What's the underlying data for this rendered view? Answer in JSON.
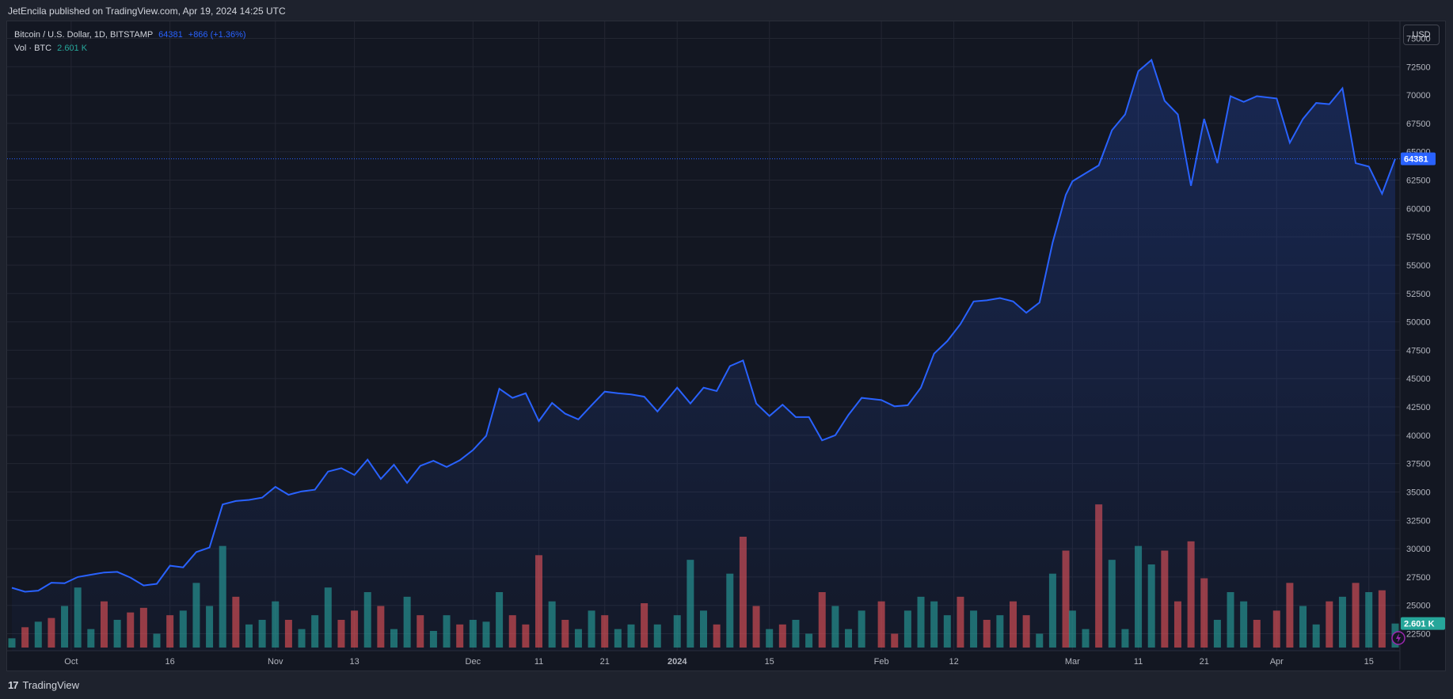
{
  "header": {
    "publisher_text": "JetEncila published on TradingView.com, Apr 19, 2024 14:25 UTC"
  },
  "legend": {
    "symbol": "Bitcoin / U.S. Dollar, 1D, BITSTAMP",
    "last_price": "64381",
    "change": "+866 (+1.36%)",
    "volume_label": "Vol · BTC",
    "volume_value": "2.601 K"
  },
  "currency_button": "USD",
  "price_badge": "64381",
  "volume_badge": "2.601 K",
  "footer": {
    "brand": "TradingView",
    "logo_text": "17"
  },
  "colors": {
    "line": "#2962ff",
    "up_volume": "#26a69a",
    "down_volume": "#ef5350",
    "background": "#131722",
    "grid": "#232632",
    "axis_text": "#b2b5be"
  },
  "chart_data": {
    "type": "area",
    "title": "Bitcoin / U.S. Dollar, 1D, BITSTAMP",
    "x_range": [
      "2023-09-22",
      "2024-04-19"
    ],
    "x_tick_labels": [
      {
        "date": "2023-10-01",
        "label": "Oct"
      },
      {
        "date": "2023-10-16",
        "label": "16"
      },
      {
        "date": "2023-11-01",
        "label": "Nov"
      },
      {
        "date": "2023-11-13",
        "label": "13"
      },
      {
        "date": "2023-12-01",
        "label": "Dec"
      },
      {
        "date": "2023-12-11",
        "label": "11"
      },
      {
        "date": "2023-12-21",
        "label": "21"
      },
      {
        "date": "2024-01-01",
        "label": "2024"
      },
      {
        "date": "2024-01-15",
        "label": "15"
      },
      {
        "date": "2024-02-01",
        "label": "Feb"
      },
      {
        "date": "2024-02-12",
        "label": "12"
      },
      {
        "date": "2024-03-01",
        "label": "Mar"
      },
      {
        "date": "2024-03-11",
        "label": "11"
      },
      {
        "date": "2024-03-21",
        "label": "21"
      },
      {
        "date": "2024-04-01",
        "label": "Apr"
      },
      {
        "date": "2024-04-15",
        "label": "15"
      }
    ],
    "y_tick_labels": [
      "22500",
      "25000",
      "27500",
      "30000",
      "32500",
      "35000",
      "37500",
      "40000",
      "42500",
      "45000",
      "47500",
      "50000",
      "52500",
      "55000",
      "57500",
      "60000",
      "62500",
      "65000",
      "67500",
      "70000",
      "72500",
      "75000"
    ],
    "ylim": [
      21000,
      76500
    ],
    "grid": true,
    "price_series": {
      "name": "Bitcoin / U.S. Dollar",
      "points": [
        [
          "2023-09-22",
          26550
        ],
        [
          "2023-09-24",
          26200
        ],
        [
          "2023-09-26",
          26300
        ],
        [
          "2023-09-28",
          27000
        ],
        [
          "2023-09-30",
          26950
        ],
        [
          "2023-10-02",
          27500
        ],
        [
          "2023-10-04",
          27700
        ],
        [
          "2023-10-06",
          27900
        ],
        [
          "2023-10-08",
          27950
        ],
        [
          "2023-10-10",
          27450
        ],
        [
          "2023-10-12",
          26750
        ],
        [
          "2023-10-14",
          26900
        ],
        [
          "2023-10-16",
          28500
        ],
        [
          "2023-10-18",
          28350
        ],
        [
          "2023-10-20",
          29700
        ],
        [
          "2023-10-22",
          30100
        ],
        [
          "2023-10-24",
          33900
        ],
        [
          "2023-10-26",
          34200
        ],
        [
          "2023-10-28",
          34300
        ],
        [
          "2023-10-30",
          34500
        ],
        [
          "2023-11-01",
          35450
        ],
        [
          "2023-11-03",
          34750
        ],
        [
          "2023-11-05",
          35050
        ],
        [
          "2023-11-07",
          35200
        ],
        [
          "2023-11-09",
          36800
        ],
        [
          "2023-11-11",
          37100
        ],
        [
          "2023-11-13",
          36500
        ],
        [
          "2023-11-15",
          37850
        ],
        [
          "2023-11-17",
          36150
        ],
        [
          "2023-11-19",
          37400
        ],
        [
          "2023-11-21",
          35800
        ],
        [
          "2023-11-23",
          37300
        ],
        [
          "2023-11-25",
          37750
        ],
        [
          "2023-11-27",
          37200
        ],
        [
          "2023-11-29",
          37800
        ],
        [
          "2023-12-01",
          38700
        ],
        [
          "2023-12-03",
          39950
        ],
        [
          "2023-12-05",
          44100
        ],
        [
          "2023-12-07",
          43300
        ],
        [
          "2023-12-09",
          43700
        ],
        [
          "2023-12-11",
          41250
        ],
        [
          "2023-12-13",
          42850
        ],
        [
          "2023-12-15",
          41900
        ],
        [
          "2023-12-17",
          41400
        ],
        [
          "2023-12-19",
          42650
        ],
        [
          "2023-12-21",
          43850
        ],
        [
          "2023-12-23",
          43700
        ],
        [
          "2023-12-25",
          43600
        ],
        [
          "2023-12-27",
          43400
        ],
        [
          "2023-12-29",
          42100
        ],
        [
          "2024-01-01",
          44200
        ],
        [
          "2024-01-03",
          42800
        ],
        [
          "2024-01-05",
          44200
        ],
        [
          "2024-01-07",
          43900
        ],
        [
          "2024-01-09",
          46100
        ],
        [
          "2024-01-11",
          46600
        ],
        [
          "2024-01-13",
          42800
        ],
        [
          "2024-01-15",
          41700
        ],
        [
          "2024-01-17",
          42700
        ],
        [
          "2024-01-19",
          41600
        ],
        [
          "2024-01-21",
          41600
        ],
        [
          "2024-01-23",
          39550
        ],
        [
          "2024-01-25",
          40000
        ],
        [
          "2024-01-27",
          41800
        ],
        [
          "2024-01-29",
          43300
        ],
        [
          "2024-02-01",
          43100
        ],
        [
          "2024-02-03",
          42550
        ],
        [
          "2024-02-05",
          42650
        ],
        [
          "2024-02-07",
          44200
        ],
        [
          "2024-02-09",
          47200
        ],
        [
          "2024-02-11",
          48300
        ],
        [
          "2024-02-13",
          49800
        ],
        [
          "2024-02-15",
          51800
        ],
        [
          "2024-02-17",
          51900
        ],
        [
          "2024-02-19",
          52100
        ],
        [
          "2024-02-21",
          51800
        ],
        [
          "2024-02-23",
          50800
        ],
        [
          "2024-02-25",
          51700
        ],
        [
          "2024-02-27",
          57000
        ],
        [
          "2024-02-29",
          61200
        ],
        [
          "2024-03-01",
          62400
        ],
        [
          "2024-03-03",
          63100
        ],
        [
          "2024-03-05",
          63800
        ],
        [
          "2024-03-07",
          66900
        ],
        [
          "2024-03-09",
          68300
        ],
        [
          "2024-03-11",
          72100
        ],
        [
          "2024-03-13",
          73100
        ],
        [
          "2024-03-15",
          69500
        ],
        [
          "2024-03-17",
          68300
        ],
        [
          "2024-03-19",
          62000
        ],
        [
          "2024-03-21",
          67900
        ],
        [
          "2024-03-23",
          64000
        ],
        [
          "2024-03-25",
          69900
        ],
        [
          "2024-03-27",
          69400
        ],
        [
          "2024-03-29",
          69900
        ],
        [
          "2024-04-01",
          69700
        ],
        [
          "2024-04-03",
          65800
        ],
        [
          "2024-04-05",
          67900
        ],
        [
          "2024-04-07",
          69300
        ],
        [
          "2024-04-09",
          69200
        ],
        [
          "2024-04-11",
          70600
        ],
        [
          "2024-04-13",
          64000
        ],
        [
          "2024-04-15",
          63700
        ],
        [
          "2024-04-17",
          61300
        ],
        [
          "2024-04-19",
          64381
        ]
      ]
    },
    "volume_series": {
      "name": "Vol · BTC",
      "unit": "thousand BTC",
      "ylim": [
        0,
        18
      ],
      "bars": [
        {
          "date": "2023-09-22",
          "value": 1.0,
          "dir": "up"
        },
        {
          "date": "2023-09-24",
          "value": 2.2,
          "dir": "down"
        },
        {
          "date": "2023-09-26",
          "value": 2.8,
          "dir": "up"
        },
        {
          "date": "2023-09-28",
          "value": 3.2,
          "dir": "down"
        },
        {
          "date": "2023-09-30",
          "value": 4.5,
          "dir": "up"
        },
        {
          "date": "2023-10-02",
          "value": 6.5,
          "dir": "up"
        },
        {
          "date": "2023-10-04",
          "value": 2.0,
          "dir": "up"
        },
        {
          "date": "2023-10-06",
          "value": 5.0,
          "dir": "down"
        },
        {
          "date": "2023-10-08",
          "value": 3.0,
          "dir": "up"
        },
        {
          "date": "2023-10-10",
          "value": 3.8,
          "dir": "down"
        },
        {
          "date": "2023-10-12",
          "value": 4.3,
          "dir": "down"
        },
        {
          "date": "2023-10-14",
          "value": 1.5,
          "dir": "up"
        },
        {
          "date": "2023-10-16",
          "value": 3.5,
          "dir": "down"
        },
        {
          "date": "2023-10-18",
          "value": 4.0,
          "dir": "up"
        },
        {
          "date": "2023-10-20",
          "value": 7.0,
          "dir": "up"
        },
        {
          "date": "2023-10-22",
          "value": 4.5,
          "dir": "up"
        },
        {
          "date": "2023-10-24",
          "value": 11.0,
          "dir": "up"
        },
        {
          "date": "2023-10-26",
          "value": 5.5,
          "dir": "down"
        },
        {
          "date": "2023-10-28",
          "value": 2.5,
          "dir": "up"
        },
        {
          "date": "2023-10-30",
          "value": 3.0,
          "dir": "up"
        },
        {
          "date": "2023-11-01",
          "value": 5.0,
          "dir": "up"
        },
        {
          "date": "2023-11-03",
          "value": 3.0,
          "dir": "down"
        },
        {
          "date": "2023-11-05",
          "value": 2.0,
          "dir": "up"
        },
        {
          "date": "2023-11-07",
          "value": 3.5,
          "dir": "up"
        },
        {
          "date": "2023-11-09",
          "value": 6.5,
          "dir": "up"
        },
        {
          "date": "2023-11-11",
          "value": 3.0,
          "dir": "down"
        },
        {
          "date": "2023-11-13",
          "value": 4.0,
          "dir": "down"
        },
        {
          "date": "2023-11-15",
          "value": 6.0,
          "dir": "up"
        },
        {
          "date": "2023-11-17",
          "value": 4.5,
          "dir": "down"
        },
        {
          "date": "2023-11-19",
          "value": 2.0,
          "dir": "up"
        },
        {
          "date": "2023-11-21",
          "value": 5.5,
          "dir": "up"
        },
        {
          "date": "2023-11-23",
          "value": 3.5,
          "dir": "down"
        },
        {
          "date": "2023-11-25",
          "value": 1.8,
          "dir": "up"
        },
        {
          "date": "2023-11-27",
          "value": 3.5,
          "dir": "up"
        },
        {
          "date": "2023-11-29",
          "value": 2.5,
          "dir": "down"
        },
        {
          "date": "2023-12-01",
          "value": 3.0,
          "dir": "up"
        },
        {
          "date": "2023-12-03",
          "value": 2.8,
          "dir": "up"
        },
        {
          "date": "2023-12-05",
          "value": 6.0,
          "dir": "up"
        },
        {
          "date": "2023-12-07",
          "value": 3.5,
          "dir": "down"
        },
        {
          "date": "2023-12-09",
          "value": 2.5,
          "dir": "down"
        },
        {
          "date": "2023-12-11",
          "value": 10.0,
          "dir": "down"
        },
        {
          "date": "2023-12-13",
          "value": 5.0,
          "dir": "up"
        },
        {
          "date": "2023-12-15",
          "value": 3.0,
          "dir": "down"
        },
        {
          "date": "2023-12-17",
          "value": 2.0,
          "dir": "up"
        },
        {
          "date": "2023-12-19",
          "value": 4.0,
          "dir": "up"
        },
        {
          "date": "2023-12-21",
          "value": 3.5,
          "dir": "down"
        },
        {
          "date": "2023-12-23",
          "value": 2.0,
          "dir": "up"
        },
        {
          "date": "2023-12-25",
          "value": 2.5,
          "dir": "up"
        },
        {
          "date": "2023-12-27",
          "value": 4.8,
          "dir": "down"
        },
        {
          "date": "2023-12-29",
          "value": 2.5,
          "dir": "up"
        },
        {
          "date": "2024-01-01",
          "value": 3.5,
          "dir": "up"
        },
        {
          "date": "2024-01-03",
          "value": 9.5,
          "dir": "up"
        },
        {
          "date": "2024-01-05",
          "value": 4.0,
          "dir": "up"
        },
        {
          "date": "2024-01-07",
          "value": 2.5,
          "dir": "down"
        },
        {
          "date": "2024-01-09",
          "value": 8.0,
          "dir": "up"
        },
        {
          "date": "2024-01-11",
          "value": 12.0,
          "dir": "down"
        },
        {
          "date": "2024-01-13",
          "value": 4.5,
          "dir": "down"
        },
        {
          "date": "2024-01-15",
          "value": 2.0,
          "dir": "up"
        },
        {
          "date": "2024-01-17",
          "value": 2.5,
          "dir": "down"
        },
        {
          "date": "2024-01-19",
          "value": 3.0,
          "dir": "up"
        },
        {
          "date": "2024-01-21",
          "value": 1.5,
          "dir": "up"
        },
        {
          "date": "2024-01-23",
          "value": 6.0,
          "dir": "down"
        },
        {
          "date": "2024-01-25",
          "value": 4.5,
          "dir": "up"
        },
        {
          "date": "2024-01-27",
          "value": 2.0,
          "dir": "up"
        },
        {
          "date": "2024-01-29",
          "value": 4.0,
          "dir": "up"
        },
        {
          "date": "2024-02-01",
          "value": 5.0,
          "dir": "down"
        },
        {
          "date": "2024-02-03",
          "value": 1.5,
          "dir": "down"
        },
        {
          "date": "2024-02-05",
          "value": 4.0,
          "dir": "up"
        },
        {
          "date": "2024-02-07",
          "value": 5.5,
          "dir": "up"
        },
        {
          "date": "2024-02-09",
          "value": 5.0,
          "dir": "up"
        },
        {
          "date": "2024-02-11",
          "value": 3.5,
          "dir": "up"
        },
        {
          "date": "2024-02-13",
          "value": 5.5,
          "dir": "down"
        },
        {
          "date": "2024-02-15",
          "value": 4.0,
          "dir": "up"
        },
        {
          "date": "2024-02-17",
          "value": 3.0,
          "dir": "down"
        },
        {
          "date": "2024-02-19",
          "value": 3.5,
          "dir": "up"
        },
        {
          "date": "2024-02-21",
          "value": 5.0,
          "dir": "down"
        },
        {
          "date": "2024-02-23",
          "value": 3.5,
          "dir": "down"
        },
        {
          "date": "2024-02-25",
          "value": 1.5,
          "dir": "up"
        },
        {
          "date": "2024-02-27",
          "value": 8.0,
          "dir": "up"
        },
        {
          "date": "2024-02-29",
          "value": 10.5,
          "dir": "down"
        },
        {
          "date": "2024-03-01",
          "value": 4.0,
          "dir": "up"
        },
        {
          "date": "2024-03-03",
          "value": 2.0,
          "dir": "up"
        },
        {
          "date": "2024-03-05",
          "value": 15.5,
          "dir": "down"
        },
        {
          "date": "2024-03-07",
          "value": 9.5,
          "dir": "up"
        },
        {
          "date": "2024-03-09",
          "value": 2.0,
          "dir": "up"
        },
        {
          "date": "2024-03-11",
          "value": 11.0,
          "dir": "up"
        },
        {
          "date": "2024-03-13",
          "value": 9.0,
          "dir": "up"
        },
        {
          "date": "2024-03-15",
          "value": 10.5,
          "dir": "down"
        },
        {
          "date": "2024-03-17",
          "value": 5.0,
          "dir": "down"
        },
        {
          "date": "2024-03-19",
          "value": 11.5,
          "dir": "down"
        },
        {
          "date": "2024-03-21",
          "value": 7.5,
          "dir": "down"
        },
        {
          "date": "2024-03-23",
          "value": 3.0,
          "dir": "up"
        },
        {
          "date": "2024-03-25",
          "value": 6.0,
          "dir": "up"
        },
        {
          "date": "2024-03-27",
          "value": 5.0,
          "dir": "up"
        },
        {
          "date": "2024-03-29",
          "value": 3.0,
          "dir": "down"
        },
        {
          "date": "2024-04-01",
          "value": 4.0,
          "dir": "down"
        },
        {
          "date": "2024-04-03",
          "value": 7.0,
          "dir": "down"
        },
        {
          "date": "2024-04-05",
          "value": 4.5,
          "dir": "up"
        },
        {
          "date": "2024-04-07",
          "value": 2.5,
          "dir": "up"
        },
        {
          "date": "2024-04-09",
          "value": 5.0,
          "dir": "down"
        },
        {
          "date": "2024-04-11",
          "value": 5.5,
          "dir": "up"
        },
        {
          "date": "2024-04-13",
          "value": 7.0,
          "dir": "down"
        },
        {
          "date": "2024-04-15",
          "value": 6.0,
          "dir": "up"
        },
        {
          "date": "2024-04-17",
          "value": 6.2,
          "dir": "down"
        },
        {
          "date": "2024-04-19",
          "value": 2.6,
          "dir": "up"
        }
      ]
    }
  }
}
